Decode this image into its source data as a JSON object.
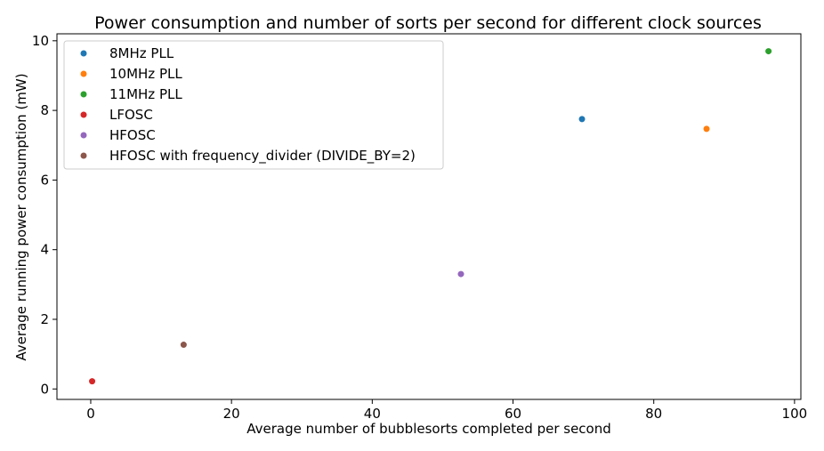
{
  "chart_data": {
    "type": "scatter",
    "title": "Power consumption and number of sorts per second for different clock sources",
    "xlabel": "Average number of bubblesorts completed per second",
    "ylabel": "Average running power consumption (mW)",
    "xlim": [
      -4.8,
      100.9
    ],
    "ylim": [
      -0.3,
      10.2
    ],
    "xticks": [
      0,
      20,
      40,
      60,
      80,
      100
    ],
    "xtick_labels": [
      "0",
      "20",
      "40",
      "60",
      "80",
      "100"
    ],
    "yticks": [
      0,
      2,
      4,
      6,
      8,
      10
    ],
    "ytick_labels": [
      "0",
      "2",
      "4",
      "6",
      "8",
      "10"
    ],
    "grid": false,
    "legend_position": "top-left",
    "series": [
      {
        "name": "8MHz PLL",
        "color": "#1f77b4",
        "points": [
          {
            "x": 69.8,
            "y": 7.75
          }
        ]
      },
      {
        "name": "10MHz PLL",
        "color": "#ff7f0e",
        "points": [
          {
            "x": 87.5,
            "y": 7.47
          }
        ]
      },
      {
        "name": "11MHz PLL",
        "color": "#2ca02c",
        "points": [
          {
            "x": 96.3,
            "y": 9.7
          }
        ]
      },
      {
        "name": "LFOSC",
        "color": "#d62728",
        "points": [
          {
            "x": 0.2,
            "y": 0.22
          }
        ]
      },
      {
        "name": "HFOSC",
        "color": "#9467bd",
        "points": [
          {
            "x": 52.6,
            "y": 3.3
          }
        ]
      },
      {
        "name": "HFOSC with frequency_divider (DIVIDE_BY=2)",
        "color": "#8c564b",
        "points": [
          {
            "x": 13.2,
            "y": 1.27
          }
        ]
      }
    ]
  }
}
